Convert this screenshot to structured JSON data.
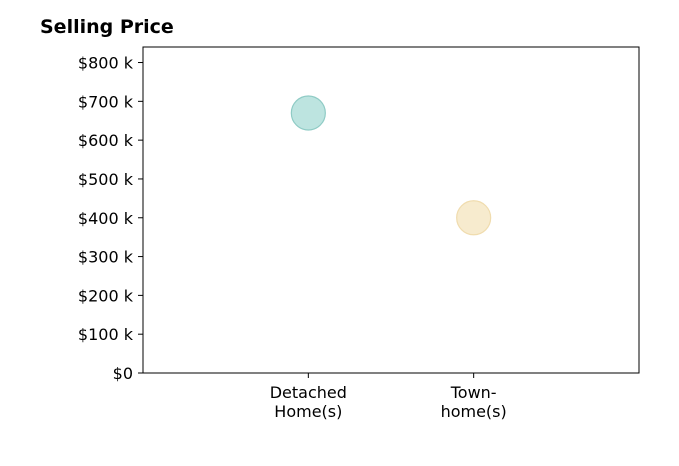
{
  "chart_data": {
    "type": "scatter",
    "title": "Selling Price",
    "xlabel": "",
    "ylabel": "",
    "categories": [
      "Detached\nHome(s)",
      "Town-\nhome(s)"
    ],
    "values": [
      670000,
      400000
    ],
    "point_colors": [
      "#b2dfdb",
      "#f6e8c6"
    ],
    "point_edge_colors": [
      "#8fcbc5",
      "#f0dcae"
    ],
    "ylim": [
      0,
      840000
    ],
    "xlim": [
      -1,
      2
    ],
    "y_ticks": [
      0,
      100000,
      200000,
      300000,
      400000,
      500000,
      600000,
      700000,
      800000
    ],
    "y_tick_labels": [
      "$0",
      "$100 k",
      "$200 k",
      "$300 k",
      "$400 k",
      "$500 k",
      "$600 k",
      "$700 k",
      "$800 k"
    ],
    "grid": false,
    "legend": "none"
  }
}
